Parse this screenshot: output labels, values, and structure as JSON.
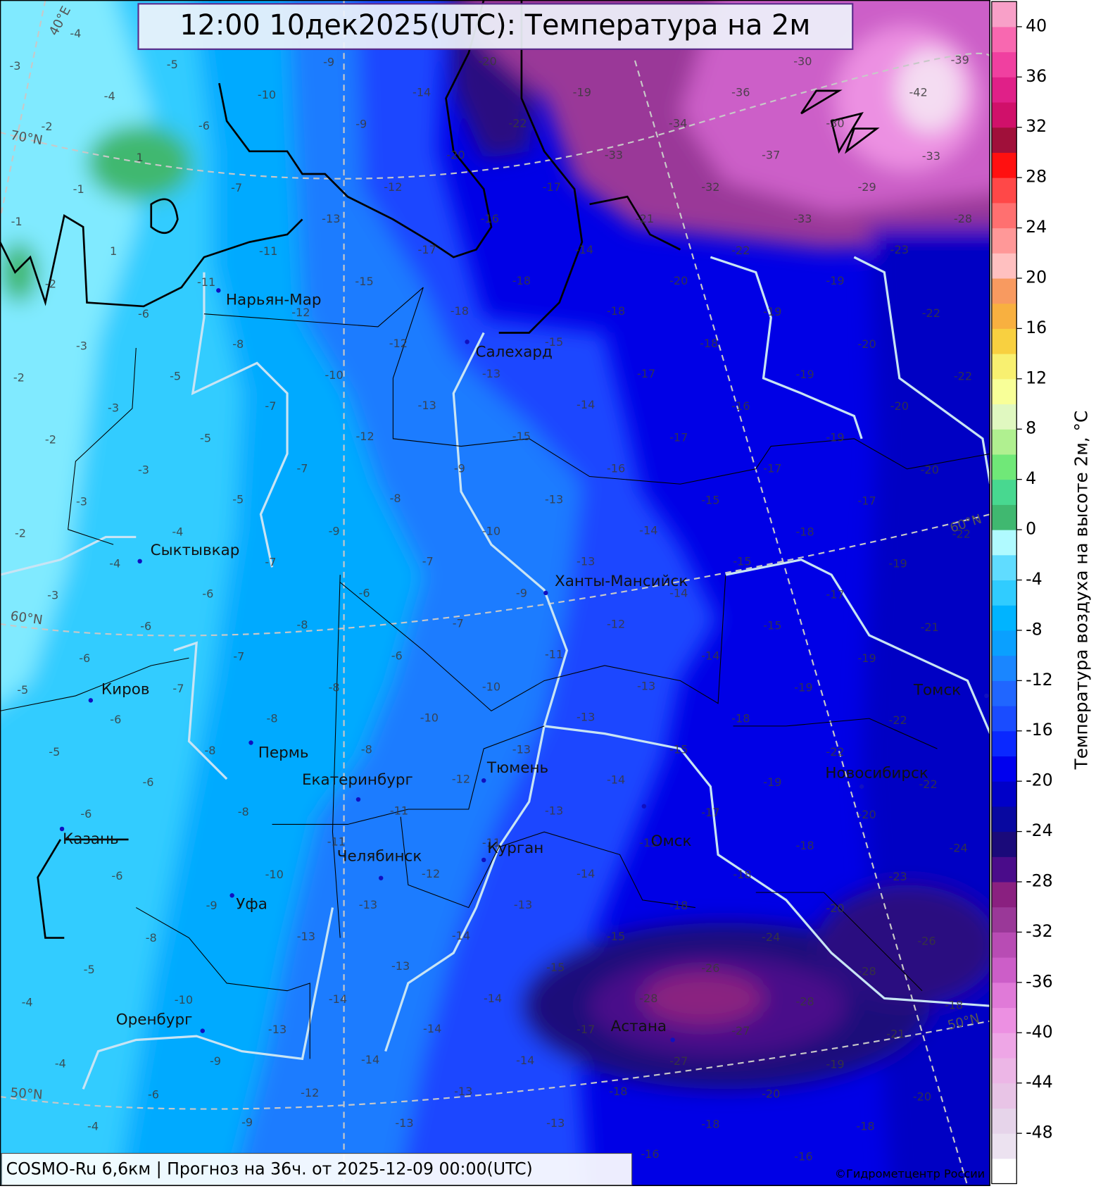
{
  "header": {
    "title": "12:00 10дек2025(UTC): Температура на 2м"
  },
  "footer": {
    "model": "COSMO-Ru 6,6км | Прогноз на  36ч. от 2025-12-09 00:00(UTC)",
    "credit": "©Гидрометцентр России"
  },
  "colorbar": {
    "label": "Температура воздуха на высоте 2м, °C",
    "lim": [
      -52,
      42
    ],
    "ticks": [
      40,
      36,
      32,
      28,
      24,
      20,
      16,
      12,
      8,
      4,
      0,
      -4,
      -8,
      -12,
      -16,
      -20,
      -24,
      -28,
      -32,
      -36,
      -40,
      -44,
      -48
    ],
    "colors": [
      "#ffffff",
      "#ece2f0",
      "#e6d4ea",
      "#e8c4e6",
      "#ecb6e6",
      "#eea6e6",
      "#ec90e2",
      "#e07ad8",
      "#cc5ec8",
      "#b84cb4",
      "#9a3898",
      "#8a2080",
      "#4a0c8a",
      "#1a0a7a",
      "#0808a0",
      "#0000c8",
      "#0000ee",
      "#0a28ff",
      "#1a4cff",
      "#2066ff",
      "#1a86ff",
      "#0aa0ff",
      "#00b4ff",
      "#30ccff",
      "#60dcff",
      "#b0faff",
      "#40b870",
      "#48d890",
      "#70e878",
      "#b0f090",
      "#e0f8c0",
      "#f8ff98",
      "#f8f070",
      "#f8d040",
      "#f8b040",
      "#f89a60",
      "#ffc0c0",
      "#ff9898",
      "#ff7070",
      "#ff4848",
      "#ff1010",
      "#a0103a",
      "#d0106a",
      "#e02088",
      "#f040a0",
      "#f868b0",
      "#f8a0c8"
    ]
  },
  "grid_labels": [
    "40°E",
    "70°N",
    "60°N",
    "50°N",
    "60°N",
    "50°N"
  ],
  "cities": [
    "Нарьян-Мар",
    "Салехард",
    "Сыктывкар",
    "Ханты-Мансийск",
    "Киров",
    "Пермь",
    "Екатеринбург",
    "Тюмень",
    "Томск",
    "Казань",
    "Новосибирск",
    "Омск",
    "Курган",
    "Челябинск",
    "Уфа",
    "Оренбург",
    "Астана"
  ],
  "temperature_labels": [
    -4,
    -3,
    -5,
    -4,
    -2,
    -6,
    1,
    -1,
    -1,
    1,
    -2,
    -6,
    -3,
    -2,
    -5,
    -3,
    -2,
    -5,
    -3,
    -3,
    -2,
    -5,
    -4,
    -4,
    -3,
    -6,
    -6,
    -6,
    -5,
    -7,
    -7,
    -6,
    -5,
    -8,
    -6,
    -6,
    -6,
    -5,
    -4,
    -8,
    -9,
    -10,
    -4,
    -6,
    -4,
    -9,
    -9,
    -9,
    -10,
    -9,
    -7,
    -12,
    -13,
    -11,
    -11,
    -15,
    -12,
    -8,
    -12,
    -10,
    -7,
    -12,
    -7,
    -8,
    -9,
    -7,
    -7,
    -6,
    -8,
    -7,
    -6,
    -8,
    -8,
    -10,
    -8,
    -8,
    -12,
    -11,
    -11,
    -10,
    -12,
    -13,
    -13,
    -13,
    -14,
    -13,
    -14,
    -14,
    -12,
    -13,
    -14,
    -20,
    -22,
    -20,
    -17,
    -16,
    -17,
    -14,
    -18,
    -18,
    -18,
    -15,
    -13,
    -13,
    -14,
    -15,
    -9,
    -16,
    -13,
    -10,
    -13,
    -9,
    -12,
    -11,
    -10,
    -13,
    -13,
    -13,
    -14,
    -13,
    -11,
    -14,
    -13,
    -14,
    -15,
    -15,
    -14,
    -17,
    -14,
    -13,
    -13,
    -19,
    -33,
    -21,
    -20,
    -18,
    -17,
    -16,
    -17,
    -17,
    -15,
    -14,
    -15,
    -14,
    -15,
    -14,
    -18,
    -15,
    -19,
    -17,
    -15,
    -18,
    -18,
    -24,
    -26,
    -28,
    -27,
    -27,
    -18,
    -20,
    -18,
    -16,
    -36,
    -34,
    -37,
    -32,
    -33,
    -22,
    -19,
    -19,
    -20,
    -19,
    -20,
    -19,
    -20,
    -17,
    -18,
    -19,
    -17,
    -21,
    -19,
    -19,
    -22,
    -22,
    -22,
    -20,
    -18,
    -23,
    -20,
    -26,
    -28,
    -28,
    -21,
    -19,
    -20,
    -18,
    -16,
    -39,
    -42,
    -33,
    -29,
    -28,
    -23,
    -22,
    -22,
    -22,
    -24,
    -18,
    -30,
    -30
  ]
}
